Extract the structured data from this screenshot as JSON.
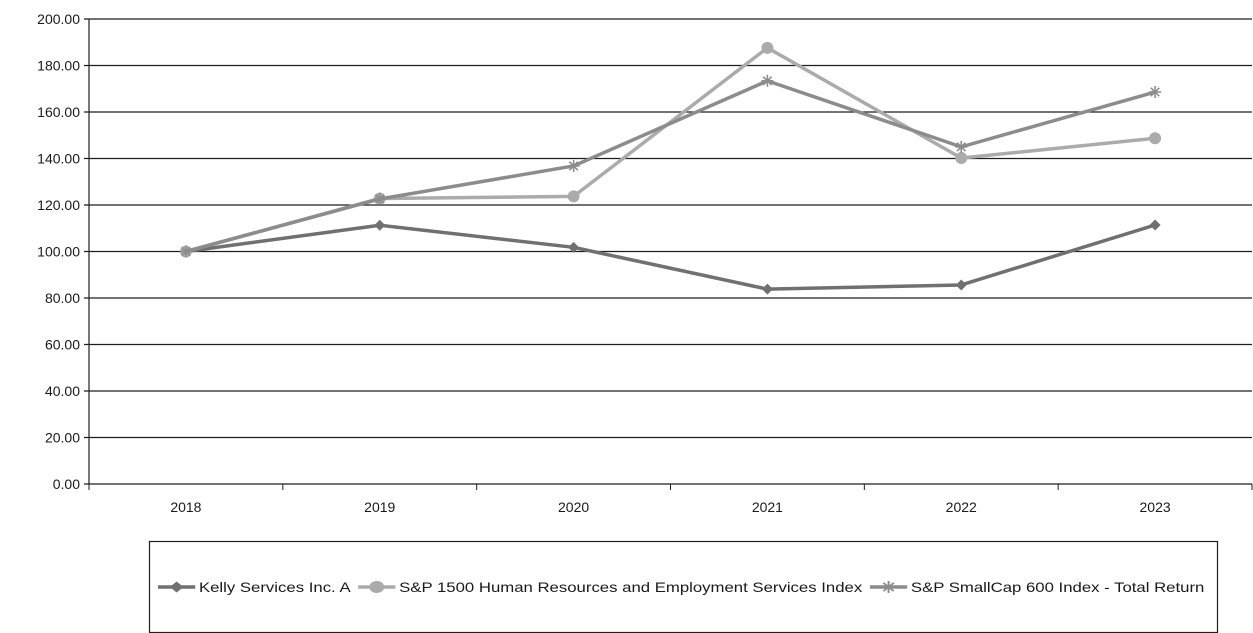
{
  "chart_data": {
    "type": "line",
    "categories": [
      "2018",
      "2019",
      "2020",
      "2021",
      "2022",
      "2023"
    ],
    "ylim": [
      0,
      200
    ],
    "yticks": [
      "0.00",
      "20.00",
      "40.00",
      "60.00",
      "80.00",
      "100.00",
      "120.00",
      "140.00",
      "160.00",
      "180.00",
      "200.00"
    ],
    "grid": true,
    "legend_position": "bottom",
    "series": [
      {
        "name": "Kelly Services Inc. A",
        "marker": "diamond",
        "color": "#707070",
        "values": [
          100.0,
          111.3,
          101.8,
          83.8,
          85.6,
          111.4
        ]
      },
      {
        "name": "S&P 1500  Human Resources and Employment Services Index",
        "marker": "circle",
        "color": "#ababab",
        "values": [
          100.0,
          122.8,
          123.7,
          187.6,
          140.2,
          148.7
        ]
      },
      {
        "name": "S&P SmallCap 600 Index - Total Return",
        "marker": "star",
        "color": "#8c8c8c",
        "values": [
          100.0,
          122.6,
          136.8,
          173.4,
          145.0,
          168.6
        ]
      }
    ]
  }
}
